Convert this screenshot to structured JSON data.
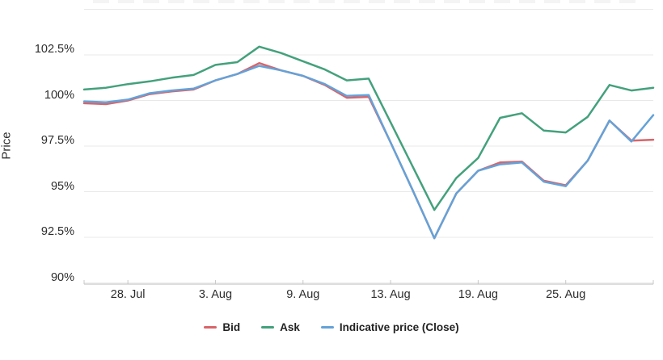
{
  "chart": {
    "y_axis_title": "Price",
    "background": "#ffffff",
    "grid_color": "#e8e8e8",
    "axis_line_color": "#c9c9c9",
    "text_color": "#2d2d2d"
  },
  "chart_data": {
    "type": "line",
    "title": "",
    "ylabel": "Price",
    "y_unit": "%",
    "ylim": [
      90,
      105
    ],
    "grid": "horizontal",
    "legend_position": "bottom",
    "y_tick_labels": [
      "102.5%",
      "100%",
      "97.5%",
      "95%",
      "92.5%",
      "90%"
    ],
    "x_tick_labels": [
      "28. Jul",
      "3. Aug",
      "9. Aug",
      "13. Aug",
      "19. Aug",
      "25. Aug"
    ],
    "x": [
      "26. Jul",
      "27. Jul",
      "28. Jul",
      "29. Jul",
      "30. Jul",
      "2. Aug",
      "3. Aug",
      "4. Aug",
      "5. Aug",
      "6. Aug",
      "9. Aug",
      "10. Aug",
      "11. Aug",
      "12. Aug",
      "13. Aug",
      "16. Aug",
      "17. Aug",
      "18. Aug",
      "19. Aug",
      "20. Aug",
      "23. Aug",
      "24. Aug",
      "25. Aug",
      "26. Aug",
      "27. Aug",
      "30. Aug",
      "31. Aug"
    ],
    "series": [
      {
        "name": "Bid",
        "color": "#d9646a",
        "values": [
          99.85,
          99.8,
          100.0,
          100.35,
          100.5,
          100.6,
          101.1,
          101.45,
          102.05,
          101.65,
          101.35,
          100.85,
          100.15,
          100.2,
          97.7,
          95.1,
          92.45,
          94.9,
          96.15,
          96.6,
          96.65,
          95.6,
          95.35,
          96.7,
          98.9,
          97.8,
          97.85
        ]
      },
      {
        "name": "Ask",
        "color": "#43a17c",
        "values": [
          100.6,
          100.7,
          100.9,
          101.05,
          101.25,
          101.4,
          101.95,
          102.1,
          102.95,
          102.6,
          102.15,
          101.7,
          101.1,
          101.2,
          98.8,
          96.4,
          94.0,
          95.75,
          96.85,
          99.05,
          99.3,
          98.35,
          98.25,
          99.1,
          100.85,
          100.55,
          100.7
        ]
      },
      {
        "name": "Indicative price (Close)",
        "color": "#64a2d8",
        "values": [
          99.95,
          99.9,
          100.05,
          100.4,
          100.55,
          100.65,
          101.1,
          101.45,
          101.9,
          101.65,
          101.35,
          100.9,
          100.25,
          100.3,
          97.7,
          95.1,
          92.45,
          94.9,
          96.15,
          96.5,
          96.6,
          95.55,
          95.3,
          96.7,
          98.9,
          97.75,
          99.2
        ]
      }
    ]
  }
}
